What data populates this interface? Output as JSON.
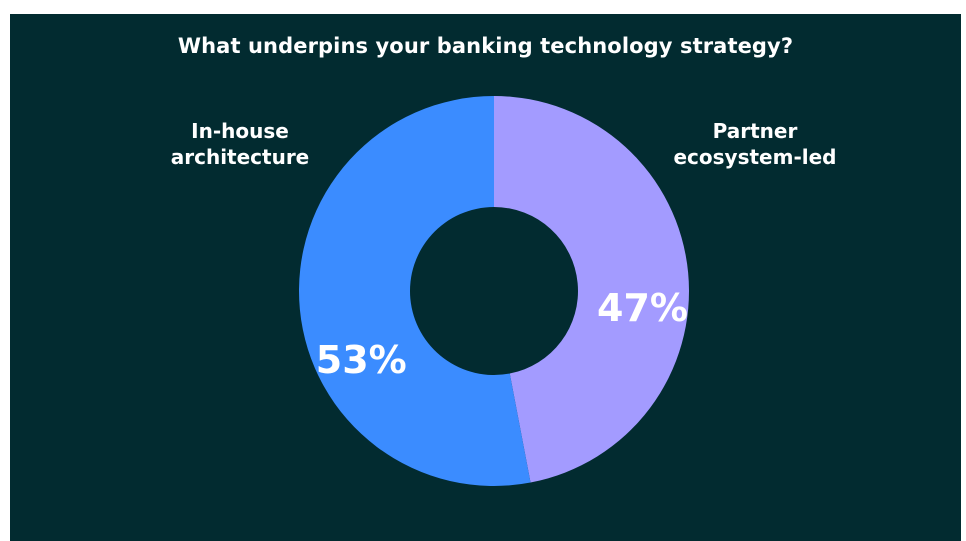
{
  "chart_data": {
    "type": "pie",
    "style": "donut",
    "title": "What underpins your banking technology strategy?",
    "slices": [
      {
        "label": "Partner ecosystem-led",
        "label_lines": [
          "Partner",
          "ecosystem-led"
        ],
        "value": 47,
        "display": "47%",
        "color": "#a39bff"
      },
      {
        "label": "In-house architecture",
        "label_lines": [
          "In-house",
          "architecture"
        ],
        "value": 53,
        "display": "53%",
        "color": "#3b8cff"
      }
    ]
  },
  "colors": {
    "background": "#022b30",
    "text": "#ffffff"
  }
}
